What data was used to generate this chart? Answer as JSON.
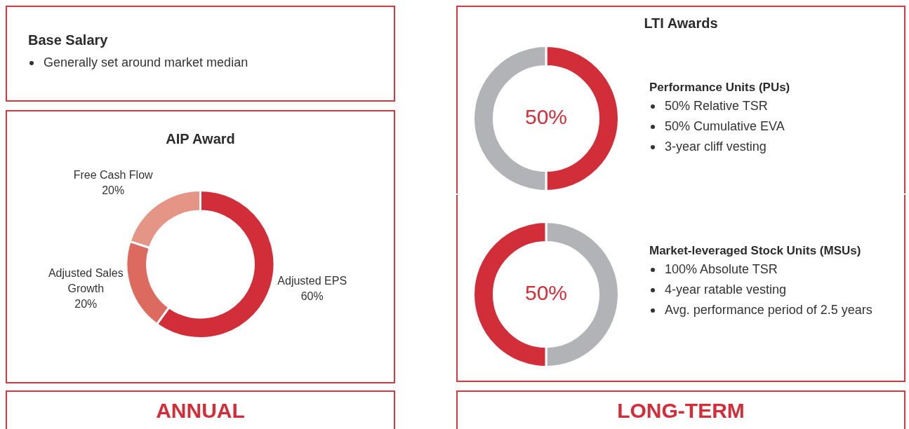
{
  "chart_data": [
    {
      "type": "other",
      "title": "Base Salary",
      "annotations": [
        "Generally set around market median"
      ]
    },
    {
      "type": "donut",
      "title": "AIP Award",
      "categories": [
        "Adjusted EPS",
        "Adjusted Sales Growth",
        "Free Cash Flow"
      ],
      "values": [
        60,
        20,
        20
      ],
      "colors": [
        "#d12e39",
        "#dd6a5e",
        "#e49585"
      ],
      "value_labels": [
        "60%",
        "20%",
        "20%"
      ]
    },
    {
      "type": "donut",
      "title": "LTI Awards",
      "subtitle": "Performance Units (PUs)",
      "categories": [
        null,
        null
      ],
      "values": [
        50,
        50
      ],
      "colors": [
        "#d12e39",
        "#b2b3b6"
      ],
      "value_labels": [
        "50%",
        null
      ],
      "annotations": [
        "50% Relative TSR",
        "50% Cumulative EVA",
        "3-year cliff vesting"
      ]
    },
    {
      "type": "donut",
      "subtitle": "Market-leveraged Stock Units (MSUs)",
      "categories": [
        null,
        null
      ],
      "values": [
        50,
        50
      ],
      "colors": [
        "#b2b3b6",
        "#d12e39"
      ],
      "value_labels": [
        null,
        "50%"
      ],
      "annotations": [
        "100% Absolute TSR",
        "4-year ratable vesting",
        "Avg. performance period of 2.5 years"
      ]
    },
    {
      "type": "other",
      "title": "ANNUAL"
    },
    {
      "type": "other",
      "title": "LONG-TERM"
    }
  ]
}
